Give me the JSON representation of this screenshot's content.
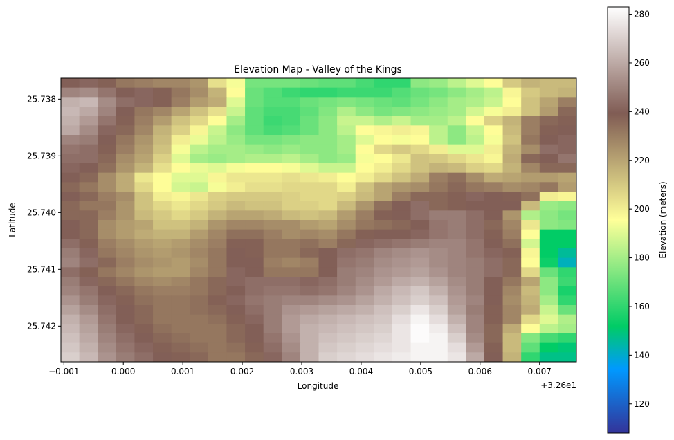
{
  "chart_data": {
    "type": "heatmap",
    "title": "Elevation Map - Valley of the Kings",
    "xlabel": "Longitude",
    "ylabel": "Latitude",
    "x_offset_label": "+3.26e1",
    "colorbar_label": "Elevation (meters)",
    "colormap": "terrain",
    "vmin": 108,
    "vmax": 283,
    "x_ticks": [
      {
        "value": -0.001,
        "label": "−0.001"
      },
      {
        "value": 0.0,
        "label": "0.000"
      },
      {
        "value": 0.001,
        "label": "0.001"
      },
      {
        "value": 0.002,
        "label": "0.002"
      },
      {
        "value": 0.003,
        "label": "0.003"
      },
      {
        "value": 0.004,
        "label": "0.004"
      },
      {
        "value": 0.005,
        "label": "0.005"
      },
      {
        "value": 0.006,
        "label": "0.006"
      },
      {
        "value": 0.007,
        "label": "0.007"
      }
    ],
    "y_ticks": [
      {
        "value": 25.738,
        "label": "25.738"
      },
      {
        "value": 25.739,
        "label": "25.739"
      },
      {
        "value": 25.74,
        "label": "25.740"
      },
      {
        "value": 25.741,
        "label": "25.741"
      },
      {
        "value": 25.742,
        "label": "25.742"
      }
    ],
    "colorbar_ticks": [
      {
        "value": 120,
        "label": "120"
      },
      {
        "value": 140,
        "label": "140"
      },
      {
        "value": 160,
        "label": "160"
      },
      {
        "value": 180,
        "label": "180"
      },
      {
        "value": 200,
        "label": "200"
      },
      {
        "value": 220,
        "label": "220"
      },
      {
        "value": 240,
        "label": "240"
      },
      {
        "value": 260,
        "label": "260"
      },
      {
        "value": 280,
        "label": "280"
      }
    ],
    "xlim": [
      -0.00105,
      0.00762
    ],
    "ylim_top": 25.73763,
    "ylim_bottom": 25.74263,
    "grid": false,
    "elevation": [
      [
        240,
        242,
        238,
        232,
        230,
        228,
        228,
        224,
        204,
        194,
        172,
        172,
        172,
        170,
        168,
        168,
        164,
        160,
        160,
        176,
        178,
        184,
        190,
        196,
        210,
        216,
        214,
        214
      ],
      [
        250,
        252,
        246,
        240,
        242,
        238,
        232,
        226,
        216,
        196,
        170,
        166,
        162,
        160,
        160,
        162,
        162,
        162,
        166,
        170,
        172,
        176,
        180,
        184,
        198,
        210,
        214,
        216
      ],
      [
        262,
        264,
        252,
        244,
        242,
        238,
        230,
        222,
        218,
        190,
        170,
        166,
        166,
        170,
        172,
        174,
        172,
        170,
        168,
        172,
        176,
        180,
        182,
        186,
        196,
        212,
        220,
        230
      ],
      [
        264,
        260,
        250,
        240,
        232,
        228,
        220,
        212,
        204,
        186,
        168,
        164,
        164,
        168,
        174,
        182,
        176,
        172,
        174,
        176,
        178,
        180,
        188,
        194,
        200,
        212,
        222,
        236
      ],
      [
        262,
        256,
        246,
        238,
        230,
        222,
        212,
        206,
        196,
        180,
        168,
        162,
        164,
        170,
        176,
        186,
        186,
        182,
        186,
        180,
        180,
        184,
        196,
        208,
        216,
        230,
        236,
        238
      ],
      [
        260,
        252,
        242,
        236,
        228,
        216,
        208,
        198,
        186,
        176,
        168,
        164,
        166,
        170,
        176,
        184,
        196,
        198,
        200,
        198,
        184,
        176,
        186,
        196,
        214,
        230,
        238,
        240
      ],
      [
        250,
        248,
        240,
        232,
        224,
        214,
        200,
        192,
        184,
        178,
        172,
        172,
        174,
        176,
        176,
        180,
        190,
        196,
        194,
        196,
        184,
        176,
        184,
        194,
        212,
        232,
        240,
        242
      ],
      [
        246,
        244,
        238,
        230,
        222,
        212,
        194,
        184,
        180,
        180,
        178,
        176,
        178,
        176,
        176,
        180,
        196,
        206,
        210,
        206,
        200,
        190,
        190,
        200,
        216,
        226,
        244,
        242
      ],
      [
        244,
        244,
        236,
        226,
        220,
        208,
        190,
        180,
        178,
        180,
        182,
        182,
        184,
        180,
        176,
        178,
        194,
        196,
        202,
        212,
        210,
        206,
        202,
        198,
        218,
        236,
        240,
        246
      ],
      [
        242,
        240,
        234,
        224,
        216,
        204,
        196,
        192,
        190,
        194,
        196,
        196,
        194,
        190,
        186,
        186,
        196,
        200,
        206,
        212,
        216,
        214,
        208,
        206,
        216,
        228,
        236,
        236
      ],
      [
        240,
        236,
        226,
        218,
        202,
        196,
        190,
        190,
        198,
        202,
        202,
        202,
        204,
        202,
        200,
        196,
        200,
        206,
        212,
        218,
        230,
        234,
        226,
        218,
        220,
        222,
        222,
        220
      ],
      [
        236,
        232,
        226,
        218,
        206,
        196,
        188,
        186,
        194,
        200,
        204,
        204,
        206,
        206,
        206,
        200,
        212,
        220,
        224,
        226,
        232,
        236,
        232,
        230,
        226,
        228,
        232,
        222
      ],
      [
        240,
        236,
        230,
        226,
        212,
        200,
        198,
        202,
        208,
        210,
        210,
        210,
        208,
        206,
        206,
        208,
        214,
        220,
        230,
        236,
        236,
        238,
        242,
        240,
        238,
        234,
        200,
        198
      ],
      [
        236,
        232,
        232,
        224,
        212,
        206,
        202,
        206,
        210,
        214,
        212,
        212,
        208,
        208,
        206,
        214,
        224,
        234,
        240,
        244,
        236,
        238,
        240,
        240,
        240,
        214,
        178,
        176
      ],
      [
        236,
        236,
        230,
        224,
        214,
        210,
        206,
        210,
        216,
        220,
        220,
        218,
        214,
        212,
        214,
        222,
        230,
        238,
        240,
        244,
        248,
        248,
        244,
        240,
        224,
        182,
        176,
        172
      ],
      [
        240,
        236,
        226,
        222,
        220,
        212,
        212,
        216,
        224,
        228,
        228,
        226,
        226,
        222,
        220,
        226,
        232,
        234,
        236,
        240,
        246,
        248,
        244,
        236,
        228,
        202,
        176,
        174
      ],
      [
        240,
        236,
        226,
        222,
        218,
        216,
        216,
        222,
        228,
        234,
        234,
        230,
        226,
        228,
        226,
        232,
        238,
        240,
        240,
        242,
        246,
        248,
        244,
        238,
        230,
        196,
        152,
        152
      ],
      [
        244,
        238,
        230,
        226,
        222,
        220,
        222,
        226,
        230,
        238,
        238,
        232,
        232,
        234,
        230,
        236,
        242,
        244,
        246,
        248,
        250,
        250,
        246,
        240,
        234,
        188,
        152,
        152
      ],
      [
        248,
        242,
        232,
        228,
        224,
        222,
        224,
        228,
        232,
        240,
        238,
        232,
        232,
        236,
        240,
        244,
        246,
        250,
        252,
        254,
        252,
        250,
        246,
        242,
        238,
        198,
        152,
        146
      ],
      [
        250,
        244,
        236,
        230,
        226,
        224,
        222,
        226,
        232,
        240,
        240,
        230,
        228,
        230,
        240,
        246,
        248,
        252,
        254,
        256,
        252,
        250,
        248,
        244,
        236,
        196,
        154,
        142
      ],
      [
        244,
        238,
        232,
        228,
        224,
        222,
        222,
        228,
        232,
        242,
        240,
        232,
        232,
        232,
        240,
        248,
        250,
        254,
        256,
        258,
        254,
        250,
        248,
        244,
        236,
        206,
        170,
        160
      ],
      [
        248,
        242,
        236,
        232,
        228,
        226,
        228,
        232,
        236,
        242,
        244,
        244,
        244,
        242,
        244,
        248,
        252,
        256,
        260,
        262,
        258,
        252,
        248,
        240,
        232,
        220,
        176,
        162
      ],
      [
        250,
        246,
        240,
        236,
        232,
        230,
        230,
        232,
        236,
        240,
        244,
        246,
        246,
        244,
        246,
        250,
        254,
        260,
        264,
        268,
        262,
        254,
        248,
        240,
        228,
        214,
        176,
        156
      ],
      [
        254,
        248,
        242,
        238,
        234,
        232,
        232,
        234,
        238,
        242,
        246,
        248,
        250,
        250,
        252,
        254,
        258,
        262,
        266,
        270,
        266,
        256,
        250,
        240,
        226,
        216,
        180,
        160
      ],
      [
        258,
        252,
        244,
        240,
        236,
        232,
        232,
        234,
        236,
        240,
        244,
        248,
        254,
        256,
        258,
        260,
        262,
        266,
        270,
        276,
        270,
        258,
        248,
        238,
        228,
        218,
        186,
        170
      ],
      [
        262,
        256,
        246,
        240,
        236,
        232,
        232,
        232,
        234,
        238,
        242,
        248,
        256,
        260,
        262,
        264,
        266,
        268,
        274,
        280,
        274,
        262,
        250,
        238,
        228,
        206,
        190,
        182
      ],
      [
        264,
        258,
        248,
        242,
        238,
        234,
        232,
        232,
        232,
        236,
        240,
        248,
        256,
        262,
        264,
        266,
        268,
        270,
        276,
        282,
        278,
        266,
        250,
        236,
        218,
        196,
        184,
        180
      ],
      [
        266,
        260,
        250,
        244,
        240,
        236,
        234,
        232,
        232,
        236,
        240,
        246,
        254,
        262,
        266,
        268,
        270,
        272,
        276,
        282,
        280,
        270,
        252,
        236,
        214,
        174,
        164,
        160
      ],
      [
        268,
        262,
        252,
        246,
        242,
        238,
        236,
        234,
        232,
        234,
        238,
        244,
        252,
        262,
        268,
        270,
        272,
        274,
        276,
        280,
        280,
        274,
        256,
        238,
        214,
        168,
        152,
        150
      ],
      [
        270,
        264,
        254,
        248,
        244,
        240,
        238,
        236,
        232,
        232,
        236,
        242,
        250,
        262,
        270,
        272,
        274,
        276,
        278,
        280,
        280,
        276,
        260,
        240,
        216,
        160,
        148,
        148
      ]
    ]
  }
}
